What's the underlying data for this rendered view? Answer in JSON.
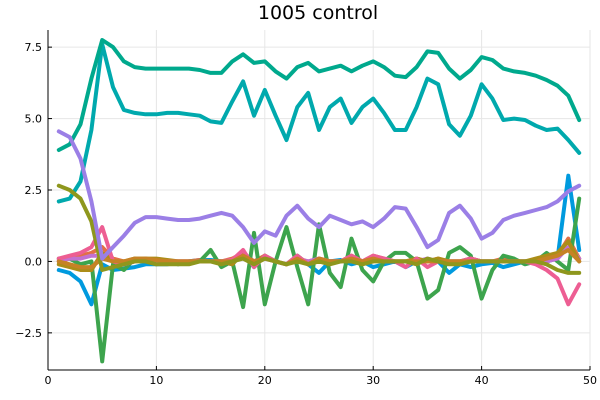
{
  "chart_data": {
    "type": "line",
    "title": "1005 control",
    "xlabel": "",
    "ylabel": "",
    "xlim": [
      0,
      50
    ],
    "ylim": [
      -3.8,
      8.1
    ],
    "xticks": [
      0,
      10,
      20,
      30,
      40,
      50
    ],
    "yticks": [
      -2.5,
      0.0,
      2.5,
      5.0,
      7.5
    ],
    "xtick_labels": [
      "0",
      "10",
      "20",
      "30",
      "40",
      "50"
    ],
    "ytick_labels": [
      "−2.5",
      "0.0",
      "2.5",
      "5.0",
      "7.5"
    ],
    "grid": true,
    "legend": "none",
    "series": [
      {
        "color": "#009ade",
        "x": [
          1,
          2,
          3,
          4,
          5,
          6,
          7,
          8,
          9,
          10,
          11,
          12,
          13,
          14,
          15,
          16,
          17,
          18,
          19,
          20,
          21,
          22,
          23,
          24,
          25,
          26,
          27,
          28,
          29,
          30,
          31,
          32,
          33,
          34,
          35,
          36,
          37,
          38,
          39,
          40,
          41,
          42,
          43,
          44,
          45,
          46,
          47,
          48,
          49
        ],
        "y": [
          -0.3,
          -0.4,
          -0.7,
          -1.5,
          -0.1,
          -0.3,
          -0.25,
          -0.2,
          -0.1,
          -0.1,
          -0.1,
          -0.05,
          0,
          0.05,
          0.05,
          0,
          -0.1,
          0.3,
          -0.2,
          0.2,
          0,
          -0.1,
          0.2,
          -0.1,
          -0.4,
          0,
          0.05,
          -0.1,
          0,
          -0.2,
          -0.1,
          0,
          -0.2,
          0,
          0.05,
          0,
          -0.4,
          -0.1,
          -0.2,
          -0.1,
          -0.05,
          -0.2,
          -0.1,
          0,
          0,
          0,
          0.1,
          3.0,
          0.4
        ]
      },
      {
        "color": "#e26f46",
        "x": [
          1,
          2,
          3,
          4,
          5,
          6,
          7,
          8,
          9,
          10,
          11,
          12,
          13,
          14,
          15,
          16,
          17,
          18,
          19,
          20,
          21,
          22,
          23,
          24,
          25,
          26,
          27,
          28,
          29,
          30,
          31,
          32,
          33,
          34,
          35,
          36,
          37,
          38,
          39,
          40,
          41,
          42,
          43,
          44,
          45,
          46,
          47,
          48,
          49
        ],
        "y": [
          0,
          0.1,
          0.2,
          0.3,
          0.5,
          0.1,
          0,
          0.05,
          0.1,
          0,
          0,
          0,
          0,
          0.05,
          0,
          0,
          0.1,
          0.3,
          0,
          0.2,
          0,
          -0.1,
          0.1,
          0,
          0.1,
          0,
          0,
          0.1,
          0,
          0.2,
          0.1,
          0,
          0,
          0.1,
          0,
          0.1,
          0,
          0,
          0.1,
          0,
          0,
          0.1,
          0,
          0,
          0,
          0,
          0.2,
          0.8,
          0.1
        ]
      },
      {
        "color": "#3da44d",
        "x": [
          1,
          2,
          3,
          4,
          5,
          6,
          7,
          8,
          9,
          10,
          11,
          12,
          13,
          14,
          15,
          16,
          17,
          18,
          19,
          20,
          21,
          22,
          23,
          24,
          25,
          26,
          27,
          28,
          29,
          30,
          31,
          32,
          33,
          34,
          35,
          36,
          37,
          38,
          39,
          40,
          41,
          42,
          43,
          44,
          45,
          46,
          47,
          48,
          49
        ],
        "y": [
          0.1,
          0.1,
          -0.1,
          0,
          -3.5,
          -0.1,
          -0.3,
          0.1,
          0,
          -0.1,
          0,
          -0.1,
          0,
          0,
          0.4,
          -0.2,
          0,
          -1.6,
          1,
          -1.5,
          0,
          1.2,
          -0.2,
          -1.5,
          1.3,
          -0.4,
          -0.9,
          0.8,
          -0.3,
          -0.7,
          0,
          0.3,
          0.3,
          0,
          -1.3,
          -1,
          0.3,
          0.5,
          0.2,
          -1.3,
          -0.3,
          0.2,
          0.1,
          -0.1,
          0,
          0.3,
          0,
          -0.3,
          2.2
        ]
      },
      {
        "color": "#c271d2",
        "x": [
          1,
          2,
          3,
          4,
          5,
          6,
          7,
          8,
          9,
          10,
          11,
          12,
          13,
          14,
          15,
          16,
          17,
          18,
          19,
          20,
          21,
          22,
          23,
          24,
          25,
          26,
          27,
          28,
          29,
          30,
          31,
          32,
          33,
          34,
          35,
          36,
          37,
          38,
          39,
          40,
          41,
          42,
          43,
          44,
          45,
          46,
          47,
          48,
          49
        ],
        "y": [
          0.05,
          0.1,
          0.1,
          0.2,
          0.2,
          0,
          -0.1,
          0,
          0.1,
          0,
          0,
          0,
          0,
          0,
          0,
          0,
          0.05,
          0.2,
          0,
          0.1,
          0,
          -0.1,
          0.1,
          0,
          0.1,
          0,
          0,
          0.1,
          0,
          0.1,
          0,
          0,
          0,
          0,
          0.1,
          0,
          0,
          0,
          0.1,
          0,
          0,
          0,
          0,
          0,
          0,
          0,
          0.1,
          0.5,
          0.1
        ]
      },
      {
        "color": "#ac8d18",
        "x": [
          1,
          2,
          3,
          4,
          5,
          6,
          7,
          8,
          9,
          10,
          11,
          12,
          13,
          14,
          15,
          16,
          17,
          18,
          19,
          20,
          21,
          22,
          23,
          24,
          25,
          26,
          27,
          28,
          29,
          30,
          31,
          32,
          33,
          34,
          35,
          36,
          37,
          38,
          39,
          40,
          41,
          42,
          43,
          44,
          45,
          46,
          47,
          48,
          49
        ],
        "y": [
          -0.1,
          -0.2,
          -0.3,
          -0.3,
          0.3,
          0,
          0,
          0.1,
          0.1,
          0.1,
          0.05,
          0,
          0,
          0,
          0,
          0,
          -0.1,
          0.3,
          -0.1,
          0.2,
          0,
          -0.1,
          0.2,
          -0.1,
          0.1,
          0,
          0,
          0.2,
          0,
          0.1,
          0,
          0,
          0,
          0.1,
          0,
          0.1,
          0,
          0,
          0.1,
          0,
          0,
          0,
          0,
          0,
          0.1,
          0.2,
          0.3,
          0.7,
          0
        ]
      },
      {
        "color": "#00a9ad",
        "x": [
          1,
          2,
          3,
          4,
          5,
          6,
          7,
          8,
          9,
          10,
          11,
          12,
          13,
          14,
          15,
          16,
          17,
          18,
          19,
          20,
          21,
          22,
          23,
          24,
          25,
          26,
          27,
          28,
          29,
          30,
          31,
          32,
          33,
          34,
          35,
          36,
          37,
          38,
          39,
          40,
          41,
          42,
          43,
          44,
          45,
          46,
          47,
          48,
          49
        ],
        "y": [
          2.1,
          2.2,
          2.8,
          4.6,
          7.6,
          6.1,
          5.3,
          5.2,
          5.15,
          5.15,
          5.2,
          5.2,
          5.15,
          5.1,
          4.9,
          4.85,
          5.6,
          6.3,
          5.1,
          6,
          5.1,
          4.25,
          5.4,
          5.9,
          4.6,
          5.4,
          5.7,
          4.85,
          5.4,
          5.7,
          5.2,
          4.6,
          4.6,
          5.4,
          6.4,
          6.2,
          4.8,
          4.4,
          5.1,
          6.2,
          5.7,
          4.95,
          5,
          4.95,
          4.75,
          4.6,
          4.65,
          4.25,
          3.8
        ]
      },
      {
        "color": "#ed5e93",
        "x": [
          1,
          2,
          3,
          4,
          5,
          6,
          7,
          8,
          9,
          10,
          11,
          12,
          13,
          14,
          15,
          16,
          17,
          18,
          19,
          20,
          21,
          22,
          23,
          24,
          25,
          26,
          27,
          28,
          29,
          30,
          31,
          32,
          33,
          34,
          35,
          36,
          37,
          38,
          39,
          40,
          41,
          42,
          43,
          44,
          45,
          46,
          47,
          48,
          49
        ],
        "y": [
          0.1,
          0.2,
          0.3,
          0.5,
          1.2,
          0,
          -0.1,
          0,
          0.05,
          0,
          0,
          0,
          0,
          0,
          0,
          0,
          0.05,
          0.4,
          -0.2,
          0.2,
          0,
          -0.1,
          0.2,
          -0.1,
          0.1,
          0,
          0,
          0.2,
          0,
          0.2,
          0.1,
          0,
          -0.2,
          0.1,
          -0.2,
          0,
          0,
          0,
          0.1,
          0,
          0,
          0,
          0,
          0,
          -0.1,
          -0.3,
          -0.6,
          -1.5,
          -0.8
        ]
      },
      {
        "color": "#c68225",
        "x": [
          1,
          2,
          3,
          4,
          5,
          6,
          7,
          8,
          9,
          10,
          11,
          12,
          13,
          14,
          15,
          16,
          17,
          18,
          19,
          20,
          21,
          22,
          23,
          24,
          25,
          26,
          27,
          28,
          29,
          30,
          31,
          32,
          33,
          34,
          35,
          36,
          37,
          38,
          39,
          40,
          41,
          42,
          43,
          44,
          45,
          46,
          47,
          48,
          49
        ],
        "y": [
          0,
          -0.1,
          -0.2,
          -0.2,
          0.1,
          0,
          0,
          0.1,
          0.1,
          0.05,
          0,
          0,
          0,
          0,
          0,
          0,
          0,
          0.2,
          0,
          0.1,
          0,
          -0.1,
          0.1,
          -0.1,
          0.1,
          0,
          0,
          0.1,
          0,
          0.1,
          0,
          0,
          0,
          0,
          0,
          0,
          0,
          0,
          0,
          0,
          0,
          0,
          0,
          0,
          0,
          0.1,
          0.2,
          0.4,
          0
        ]
      },
      {
        "color": "#00a98d",
        "x": [
          1,
          2,
          3,
          4,
          5,
          6,
          7,
          8,
          9,
          10,
          11,
          12,
          13,
          14,
          15,
          16,
          17,
          18,
          19,
          20,
          21,
          22,
          23,
          24,
          25,
          26,
          27,
          28,
          29,
          30,
          31,
          32,
          33,
          34,
          35,
          36,
          37,
          38,
          39,
          40,
          41,
          42,
          43,
          44,
          45,
          46,
          47,
          48,
          49
        ],
        "y": [
          3.9,
          4.1,
          4.8,
          6.4,
          7.75,
          7.5,
          7,
          6.8,
          6.75,
          6.75,
          6.75,
          6.75,
          6.75,
          6.7,
          6.6,
          6.6,
          7,
          7.25,
          6.95,
          7,
          6.65,
          6.4,
          6.8,
          6.95,
          6.65,
          6.75,
          6.85,
          6.65,
          6.85,
          7,
          6.8,
          6.5,
          6.45,
          6.8,
          7.35,
          7.3,
          6.75,
          6.4,
          6.7,
          7.15,
          7.05,
          6.75,
          6.65,
          6.6,
          6.5,
          6.35,
          6.15,
          5.8,
          4.95
        ]
      },
      {
        "color": "#8e971d",
        "x": [
          1,
          2,
          3,
          4,
          5,
          6,
          7,
          8,
          9,
          10,
          11,
          12,
          13,
          14,
          15,
          16,
          17,
          18,
          19,
          20,
          21,
          22,
          23,
          24,
          25,
          26,
          27,
          28,
          29,
          30,
          31,
          32,
          33,
          34,
          35,
          36,
          37,
          38,
          39,
          40,
          41,
          42,
          43,
          44,
          45,
          46,
          47,
          48,
          49
        ],
        "y": [
          2.65,
          2.5,
          2.2,
          1.4,
          -0.3,
          -0.2,
          -0.1,
          0,
          0,
          -0.1,
          -0.1,
          -0.1,
          -0.1,
          0,
          0,
          -0.1,
          0,
          0.1,
          -0.1,
          0.1,
          0,
          -0.1,
          0,
          -0.1,
          0,
          -0.1,
          0,
          0,
          -0.1,
          0,
          0,
          0,
          0,
          -0.1,
          0.1,
          0,
          -0.1,
          -0.1,
          0,
          0,
          0,
          0,
          0,
          0,
          0,
          -0.1,
          -0.3,
          -0.4,
          -0.4
        ]
      },
      {
        "color": "#9b7fe6",
        "x": [
          1,
          2,
          3,
          4,
          5,
          6,
          7,
          8,
          9,
          10,
          11,
          12,
          13,
          14,
          15,
          16,
          17,
          18,
          19,
          20,
          21,
          22,
          23,
          24,
          25,
          26,
          27,
          28,
          29,
          30,
          31,
          32,
          33,
          34,
          35,
          36,
          37,
          38,
          39,
          40,
          41,
          42,
          43,
          44,
          45,
          46,
          47,
          48,
          49
        ],
        "y": [
          4.55,
          4.35,
          3.6,
          2.1,
          0.1,
          0.5,
          0.9,
          1.35,
          1.55,
          1.55,
          1.5,
          1.45,
          1.45,
          1.5,
          1.6,
          1.7,
          1.6,
          1.2,
          0.65,
          1.05,
          0.9,
          1.6,
          1.95,
          1.5,
          1.2,
          1.6,
          1.45,
          1.3,
          1.4,
          1.2,
          1.5,
          1.9,
          1.85,
          1.2,
          0.5,
          0.75,
          1.7,
          1.95,
          1.5,
          0.8,
          1.0,
          1.45,
          1.6,
          1.7,
          1.8,
          1.9,
          2.1,
          2.45,
          2.65
        ]
      }
    ]
  }
}
